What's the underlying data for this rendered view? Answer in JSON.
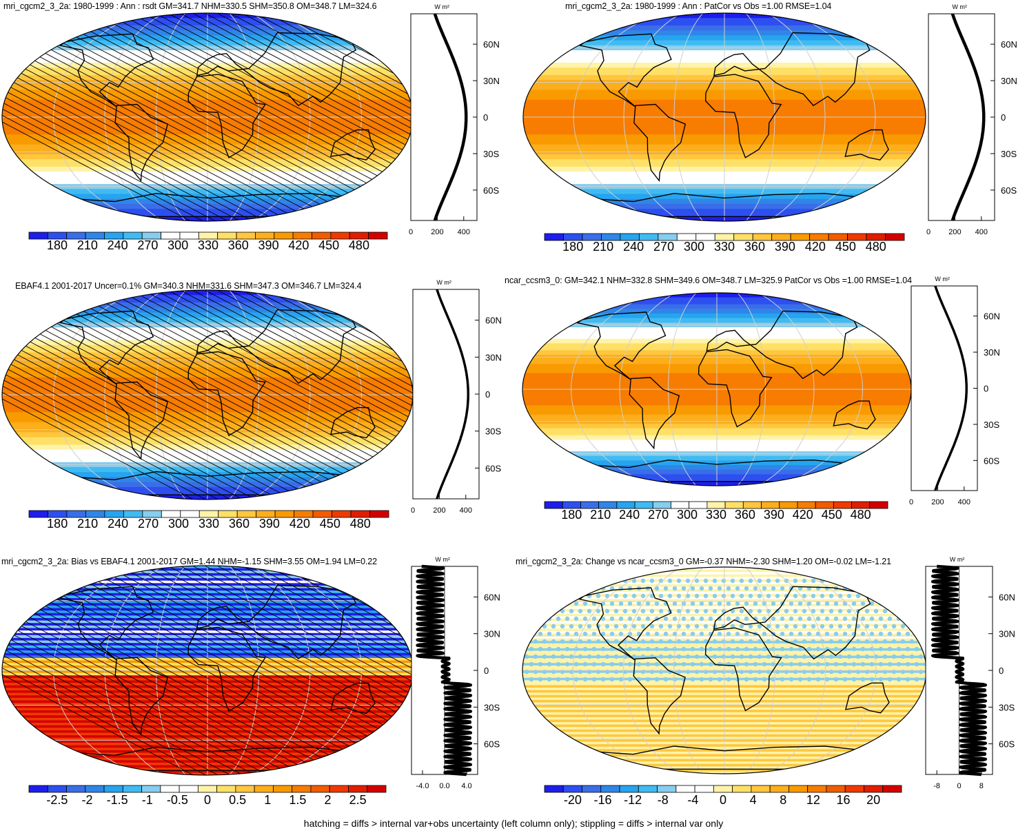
{
  "footer": "hatching = diffs > internal var+obs uncertainty (left column only); stippling = diffs > internal var only",
  "chart_data": [
    {
      "type": "heatmap",
      "panel": "model-climatology",
      "title": "mri_cgcm2_3_2a: 1980-1999 : Ann : rsdt GM=341.7 NHM=330.5 SHM=350.8 OM=348.7 LM=324.6",
      "field": "tsi",
      "hatched": true,
      "colorbar": {
        "labels": [
          "180",
          "210",
          "240",
          "270",
          "300",
          "330",
          "360",
          "390",
          "420",
          "450",
          "480"
        ],
        "min": 165,
        "max": 495
      },
      "profile": {
        "units": "W m²",
        "xticks": [
          "0",
          "200",
          "400"
        ],
        "xlim": [
          0,
          500
        ],
        "yticks": [
          "60N",
          "30N",
          "0",
          "30S",
          "60S"
        ],
        "yvalues": [
          60,
          30,
          0,
          -30,
          -60
        ],
        "ylim": [
          -85,
          85
        ],
        "style": "smooth-thick"
      }
    },
    {
      "type": "heatmap",
      "panel": "model-vs-obs",
      "title": "mri_cgcm2_3_2a: 1980-1999 : Ann : PatCor vs Obs =1.00 RMSE=1.04",
      "field": "tsi",
      "hatched": false,
      "colorbar": {
        "labels": [
          "180",
          "210",
          "240",
          "270",
          "300",
          "330",
          "360",
          "390",
          "420",
          "450",
          "480"
        ],
        "min": 165,
        "max": 495
      },
      "profile": {
        "units": "W m²",
        "xticks": [
          "0",
          "200",
          "400"
        ],
        "xlim": [
          0,
          500
        ],
        "yticks": [
          "60N",
          "30N",
          "0",
          "30S",
          "60S"
        ],
        "yvalues": [
          60,
          30,
          0,
          -30,
          -60
        ],
        "ylim": [
          -85,
          85
        ],
        "style": "smooth-thick"
      }
    },
    {
      "type": "heatmap",
      "panel": "observations",
      "title": "EBAF4.1 2001-2017 Uncer=0.1% GM=340.3 NHM=331.6 SHM=347.3 OM=346.7 LM=324.4",
      "field": "tsi",
      "hatched": true,
      "colorbar": {
        "labels": [
          "180",
          "210",
          "240",
          "270",
          "300",
          "330",
          "360",
          "390",
          "420",
          "450",
          "480"
        ],
        "min": 165,
        "max": 495
      },
      "profile": {
        "units": "W m²",
        "xticks": [
          "0",
          "200",
          "400"
        ],
        "xlim": [
          0,
          500
        ],
        "yticks": [
          "60N",
          "30N",
          "0",
          "30S",
          "60S"
        ],
        "yvalues": [
          60,
          30,
          0,
          -30,
          -60
        ],
        "ylim": [
          -85,
          85
        ],
        "style": "smooth"
      }
    },
    {
      "type": "heatmap",
      "panel": "reference-model",
      "title": "ncar_ccsm3_0: GM=342.1 NHM=332.8 SHM=349.6 OM=348.7 LM=325.9 PatCor vs Obs =1.00 RMSE=1.04",
      "field": "tsi",
      "hatched": false,
      "colorbar": {
        "labels": [
          "180",
          "210",
          "240",
          "270",
          "300",
          "330",
          "360",
          "390",
          "420",
          "450",
          "480"
        ],
        "min": 165,
        "max": 495
      },
      "profile": {
        "units": "W m²",
        "xticks": [
          "0",
          "200",
          "400"
        ],
        "xlim": [
          0,
          500
        ],
        "yticks": [
          "60N",
          "30N",
          "0",
          "30S",
          "60S"
        ],
        "yvalues": [
          60,
          30,
          0,
          -30,
          -60
        ],
        "ylim": [
          -85,
          85
        ],
        "style": "smooth"
      }
    },
    {
      "type": "heatmap",
      "panel": "bias",
      "title": "mri_cgcm2_3_2a: Bias vs EBAF4.1 2001-2017 GM=1.44 NHM=-1.15 SHM=3.55 OM=1.94 LM=0.22",
      "field": "bias",
      "hatched": true,
      "colorbar": {
        "labels": [
          "-2.5",
          "-2",
          "-1.5",
          "-1",
          "-0.5",
          "0",
          "0.5",
          "1",
          "1.5",
          "2",
          "2.5"
        ],
        "min": -2.75,
        "max": 2.75
      },
      "profile": {
        "units": "W m²",
        "xticks": [
          "-4.0",
          "0.0",
          "4.0"
        ],
        "xlim": [
          -6,
          6
        ],
        "yticks": [
          "60N",
          "30N",
          "0",
          "30S",
          "60S"
        ],
        "yvalues": [
          60,
          30,
          0,
          -30,
          -60
        ],
        "ylim": [
          -85,
          85
        ],
        "style": "wiggly"
      }
    },
    {
      "type": "heatmap",
      "panel": "change",
      "title": "mri_cgcm2_3_2a: Change vs ncar_ccsm3_0 GM=-0.37 NHM=-2.30 SHM=1.20 OM=-0.02 LM=-1.21",
      "field": "change",
      "hatched": false,
      "colorbar": {
        "labels": [
          "-20",
          "-16",
          "-12",
          "-8",
          "-4",
          "0",
          "4",
          "8",
          "12",
          "16",
          "20"
        ],
        "min": -22,
        "max": 22
      },
      "profile": {
        "units": "W m²",
        "xticks": [
          "-8",
          "0",
          "8"
        ],
        "xlim": [
          -12,
          12
        ],
        "yticks": [
          "60N",
          "30N",
          "0",
          "30S",
          "60S"
        ],
        "yvalues": [
          60,
          30,
          0,
          -30,
          -60
        ],
        "ylim": [
          -85,
          85
        ],
        "style": "wiggly"
      }
    }
  ]
}
